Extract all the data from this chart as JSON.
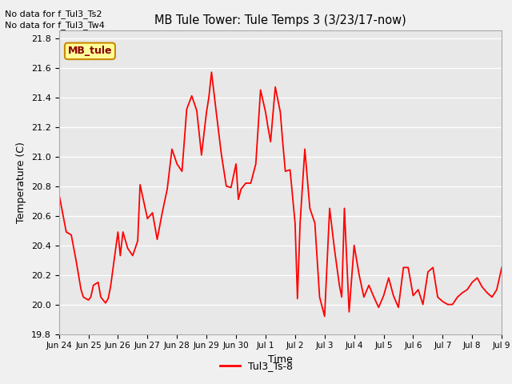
{
  "title": "MB Tule Tower: Tule Temps 3 (3/23/17-now)",
  "xlabel": "Time",
  "ylabel": "Temperature (C)",
  "no_data_text": [
    "No data for f_Tul3_Ts2",
    "No data for f_Tul3_Tw4"
  ],
  "legend_label": "Tul3_Ts-8",
  "mb_tule_label": "MB_tule",
  "line_color": "#FF0000",
  "bg_color": "#E8E8E8",
  "fig_bg_color": "#F0F0F0",
  "ylim": [
    19.8,
    21.85
  ],
  "yticks": [
    19.8,
    20.0,
    20.2,
    20.4,
    20.6,
    20.8,
    21.0,
    21.2,
    21.4,
    21.6,
    21.8
  ],
  "x_tick_labels": [
    "Jun 24",
    "Jun 25",
    "Jun 26",
    "Jun 27",
    "Jun 28",
    "Jun 29",
    "Jun 30",
    "Jul 1",
    "Jul 2",
    "Jul 3",
    "Jul 4",
    "Jul 5",
    "Jul 6",
    "Jul 7",
    "Jul 8",
    "Jul 9"
  ],
  "data_x": [
    0.0,
    0.25,
    0.42,
    0.58,
    0.75,
    0.83,
    1.0,
    1.08,
    1.17,
    1.33,
    1.42,
    1.58,
    1.67,
    1.75,
    2.0,
    2.08,
    2.17,
    2.33,
    2.5,
    2.67,
    2.75,
    3.0,
    3.17,
    3.33,
    3.5,
    3.67,
    3.83,
    4.0,
    4.17,
    4.33,
    4.5,
    4.67,
    4.83,
    5.0,
    5.08,
    5.17,
    5.33,
    5.5,
    5.67,
    5.83,
    6.0,
    6.08,
    6.17,
    6.33,
    6.5,
    6.67,
    6.83,
    7.0,
    7.08,
    7.17,
    7.33,
    7.5,
    7.58,
    7.67,
    7.83,
    8.0,
    8.08,
    8.17,
    8.33,
    8.5,
    8.67,
    8.83,
    9.0,
    9.17,
    9.33,
    9.5,
    9.58,
    9.67,
    9.83,
    10.0,
    10.17,
    10.33,
    10.5,
    10.67,
    10.83,
    11.0,
    11.17,
    11.33,
    11.5,
    11.67,
    11.83,
    12.0,
    12.17,
    12.33,
    12.5,
    12.67,
    12.83,
    13.0,
    13.17,
    13.33,
    13.5,
    13.67,
    13.83,
    14.0,
    14.17,
    14.33,
    14.5,
    14.67,
    14.83,
    15.0
  ],
  "data_y": [
    20.75,
    20.49,
    20.47,
    20.3,
    20.1,
    20.05,
    20.03,
    20.05,
    20.13,
    20.15,
    20.05,
    20.01,
    20.04,
    20.12,
    20.49,
    20.33,
    20.49,
    20.38,
    20.33,
    20.43,
    20.81,
    20.58,
    20.62,
    20.44,
    20.62,
    20.78,
    21.05,
    20.95,
    20.9,
    21.32,
    21.41,
    21.31,
    21.01,
    21.3,
    21.4,
    21.57,
    21.3,
    21.02,
    20.8,
    20.79,
    20.95,
    20.71,
    20.78,
    20.82,
    20.82,
    20.95,
    21.45,
    21.3,
    21.2,
    21.1,
    21.47,
    21.3,
    21.1,
    20.9,
    20.91,
    20.55,
    20.04,
    20.55,
    21.05,
    20.65,
    20.55,
    20.05,
    19.92,
    20.65,
    20.38,
    20.13,
    20.05,
    20.65,
    19.95,
    20.4,
    20.2,
    20.05,
    20.13,
    20.05,
    19.98,
    20.06,
    20.18,
    20.06,
    19.98,
    20.25,
    20.25,
    20.06,
    20.1,
    20.0,
    20.22,
    20.25,
    20.05,
    20.02,
    20.0,
    20.0,
    20.05,
    20.08,
    20.1,
    20.15,
    20.18,
    20.12,
    20.08,
    20.05,
    20.1,
    20.25
  ]
}
